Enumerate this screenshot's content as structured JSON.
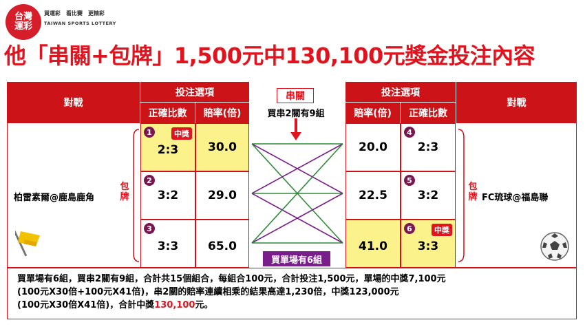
{
  "logo": {
    "zh_line1": "台灣",
    "zh_line2": "運彩",
    "tagline": "買運彩　看比賽　更精彩",
    "en_name": "TAIWAN SPORTS LOTTERY"
  },
  "title": "他「串關+包牌」1,500元中130,100元獎金投注內容",
  "left": {
    "header_match": "對戰",
    "header_options": "投注選項",
    "col_score": "正確比數",
    "col_odds": "賠率(倍)",
    "team": "柏雷素爾@鹿島鹿角",
    "pai": [
      "包",
      "牌"
    ],
    "rows": [
      {
        "n": "1",
        "score": "2:3",
        "odds": "30.0",
        "badge": "中獎"
      },
      {
        "n": "2",
        "score": "3:2",
        "odds": "29.0",
        "badge": ""
      },
      {
        "n": "3",
        "score": "3:3",
        "odds": "65.0",
        "badge": ""
      }
    ]
  },
  "right": {
    "header_match": "對戰",
    "header_options": "投注選項",
    "col_odds": "賠率(倍)",
    "col_score": "正確比數",
    "team": "FC琉球@福島聯",
    "pai": [
      "包",
      "牌"
    ],
    "rows": [
      {
        "n": "4",
        "score": "2:3",
        "odds": "20.0",
        "badge": ""
      },
      {
        "n": "5",
        "score": "3:2",
        "odds": "22.5",
        "badge": ""
      },
      {
        "n": "6",
        "score": "3:3",
        "odds": "41.0",
        "badge": "中獎"
      }
    ]
  },
  "middle": {
    "chuan_label": "串關",
    "chuan_desc": "買串2關有9組",
    "single_label": "買單場有6組"
  },
  "notes": {
    "line1": "買單場有6組，買串2關有9組，合計共15個組合，每組合100元，合計投注1,500元，單場的中獎7,100元",
    "line2": "(100元X30倍+100元X41倍)，串2關的賠率連續相乘的結果高達1,230倍，中獎123,000元",
    "line3a": "(100元X30倍X41倍)，合計中獎",
    "line3b": "130,100",
    "line3c": "元。"
  },
  "colors": {
    "red": "#cc1418",
    "win": "#fbf28c",
    "green": "#2f8a3a",
    "purple": "#7a1e8c",
    "badge": "#7a1750"
  }
}
